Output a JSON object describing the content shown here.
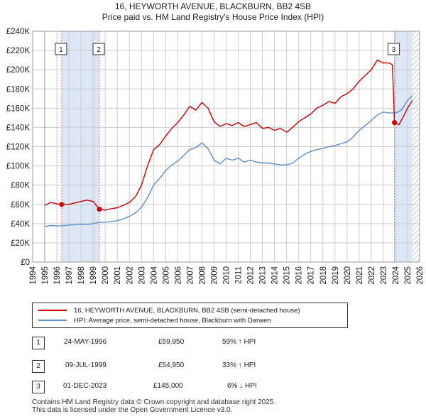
{
  "title_line1": "16, HEYWORTH AVENUE, BLACKBURN, BB2 4SB",
  "title_line2": "Price paid vs. HM Land Registry's House Price Index (HPI)",
  "colors": {
    "property": "#cc0000",
    "hpi": "#5b8fd0",
    "shade": "#dde6f5",
    "grid": "#cccccc",
    "marker_dash": "#dd6677"
  },
  "legend": {
    "property_label": "16, HEYWORTH AVENUE, BLACKBURN, BB2 4SB (semi-detached house)",
    "hpi_label": "HPI: Average price, semi-detached house, Blackburn with Darwen"
  },
  "transactions": [
    {
      "num": "1",
      "date": "24-MAY-1996",
      "price": "£59,950",
      "hpi": "59% ↑ HPI"
    },
    {
      "num": "2",
      "date": "09-JUL-1999",
      "price": "£54,950",
      "hpi": "33% ↑ HPI"
    },
    {
      "num": "3",
      "date": "01-DEC-2023",
      "price": "£145,000",
      "hpi": "6% ↓ HPI"
    }
  ],
  "footer_line1": "Contains HM Land Registry data © Crown copyright and database right 2025.",
  "footer_line2": "This data is licensed under the Open Government Licence v3.0.",
  "chart_data": {
    "type": "line",
    "title": "16, HEYWORTH AVENUE, BLACKBURN, BB2 4SB — Price paid vs. HM Land Registry's House Price Index (HPI)",
    "xlim": [
      1994,
      2026
    ],
    "ylim": [
      0,
      240000
    ],
    "x_ticks": [
      "1994",
      "1995",
      "1996",
      "1997",
      "1998",
      "1999",
      "2000",
      "2001",
      "2002",
      "2003",
      "2004",
      "2005",
      "2006",
      "2007",
      "2008",
      "2009",
      "2010",
      "2011",
      "2012",
      "2013",
      "2014",
      "2015",
      "2016",
      "2017",
      "2018",
      "2019",
      "2020",
      "2021",
      "2022",
      "2023",
      "2024",
      "2025",
      "2026"
    ],
    "y_ticks": [
      {
        "value": 0,
        "label": "£0"
      },
      {
        "value": 20000,
        "label": "£20K"
      },
      {
        "value": 40000,
        "label": "£40K"
      },
      {
        "value": 60000,
        "label": "£60K"
      },
      {
        "value": 80000,
        "label": "£80K"
      },
      {
        "value": 100000,
        "label": "£100K"
      },
      {
        "value": 120000,
        "label": "£120K"
      },
      {
        "value": 140000,
        "label": "£140K"
      },
      {
        "value": 160000,
        "label": "£160K"
      },
      {
        "value": 180000,
        "label": "£180K"
      },
      {
        "value": 200000,
        "label": "£200K"
      },
      {
        "value": 220000,
        "label": "£220K"
      },
      {
        "value": 240000,
        "label": "£240K"
      }
    ],
    "data_start": 1995,
    "data_end": 2025.4,
    "shaded_ranges": [
      [
        1996.4,
        1999.5
      ],
      [
        2023.9,
        2025.4
      ]
    ],
    "hatched_range": [
      2025.4,
      2026
    ],
    "sale_markers": [
      {
        "label": "1",
        "x": 1996.4,
        "y": 59950
      },
      {
        "label": "2",
        "x": 1999.52,
        "y": 54950
      },
      {
        "label": "3",
        "x": 2023.92,
        "y": 145000
      }
    ],
    "series": [
      {
        "name": "16, HEYWORTH AVENUE, BLACKBURN, BB2 4SB (semi-detached house)",
        "points": [
          [
            1995,
            59000
          ],
          [
            1995.5,
            62000
          ],
          [
            1996,
            60500
          ],
          [
            1996.4,
            59950
          ],
          [
            1997,
            60000
          ],
          [
            1997.5,
            61500
          ],
          [
            1998,
            63000
          ],
          [
            1998.5,
            64500
          ],
          [
            1999,
            63000
          ],
          [
            1999.52,
            54950
          ],
          [
            2000,
            54000
          ],
          [
            2000.5,
            55500
          ],
          [
            2001,
            56500
          ],
          [
            2001.5,
            59000
          ],
          [
            2002,
            62000
          ],
          [
            2002.5,
            68000
          ],
          [
            2003,
            80000
          ],
          [
            2003.5,
            100000
          ],
          [
            2004,
            117000
          ],
          [
            2004.5,
            122000
          ],
          [
            2005,
            131000
          ],
          [
            2005.5,
            139000
          ],
          [
            2006,
            145000
          ],
          [
            2006.5,
            153000
          ],
          [
            2007,
            162000
          ],
          [
            2007.5,
            158000
          ],
          [
            2008,
            166000
          ],
          [
            2008.5,
            160000
          ],
          [
            2009,
            146000
          ],
          [
            2009.5,
            141000
          ],
          [
            2010,
            144000
          ],
          [
            2010.5,
            142000
          ],
          [
            2011,
            145000
          ],
          [
            2011.5,
            141000
          ],
          [
            2012,
            143000
          ],
          [
            2012.5,
            145000
          ],
          [
            2013,
            139000
          ],
          [
            2013.5,
            140000
          ],
          [
            2014,
            137000
          ],
          [
            2014.5,
            139000
          ],
          [
            2015,
            135000
          ],
          [
            2015.5,
            140000
          ],
          [
            2016,
            146000
          ],
          [
            2016.5,
            150000
          ],
          [
            2017,
            154000
          ],
          [
            2017.5,
            160000
          ],
          [
            2018,
            163000
          ],
          [
            2018.5,
            167000
          ],
          [
            2019,
            165000
          ],
          [
            2019.5,
            172000
          ],
          [
            2020,
            175000
          ],
          [
            2020.5,
            180000
          ],
          [
            2021,
            188000
          ],
          [
            2021.5,
            194000
          ],
          [
            2022,
            200000
          ],
          [
            2022.5,
            210000
          ],
          [
            2023,
            207000
          ],
          [
            2023.5,
            207000
          ],
          [
            2023.75,
            205000
          ],
          [
            2023.92,
            145000
          ],
          [
            2024,
            144000
          ],
          [
            2024.3,
            143000
          ],
          [
            2024.6,
            150000
          ],
          [
            2025,
            160000
          ],
          [
            2025.4,
            168000
          ]
        ]
      },
      {
        "name": "HPI: Average price, semi-detached house, Blackburn with Darwen",
        "points": [
          [
            1995,
            37000
          ],
          [
            1995.5,
            38000
          ],
          [
            1996,
            37500
          ],
          [
            1996.4,
            37700
          ],
          [
            1997,
            38500
          ],
          [
            1997.5,
            38700
          ],
          [
            1998,
            39500
          ],
          [
            1998.5,
            39000
          ],
          [
            1999,
            40000
          ],
          [
            1999.52,
            41300
          ],
          [
            2000,
            41500
          ],
          [
            2000.5,
            42000
          ],
          [
            2001,
            43000
          ],
          [
            2001.5,
            45000
          ],
          [
            2002,
            47500
          ],
          [
            2002.5,
            51000
          ],
          [
            2003,
            57000
          ],
          [
            2003.5,
            67000
          ],
          [
            2004,
            80000
          ],
          [
            2004.5,
            87000
          ],
          [
            2005,
            95000
          ],
          [
            2005.5,
            101000
          ],
          [
            2006,
            105000
          ],
          [
            2006.5,
            111000
          ],
          [
            2007,
            117000
          ],
          [
            2007.5,
            119000
          ],
          [
            2008,
            124000
          ],
          [
            2008.5,
            118000
          ],
          [
            2009,
            106000
          ],
          [
            2009.5,
            102000
          ],
          [
            2010,
            108000
          ],
          [
            2010.5,
            106000
          ],
          [
            2011,
            108000
          ],
          [
            2011.5,
            104000
          ],
          [
            2012,
            106000
          ],
          [
            2012.5,
            104000
          ],
          [
            2013,
            103000
          ],
          [
            2013.5,
            103000
          ],
          [
            2014,
            102000
          ],
          [
            2014.5,
            101000
          ],
          [
            2015,
            101000
          ],
          [
            2015.5,
            103000
          ],
          [
            2016,
            108000
          ],
          [
            2016.5,
            112000
          ],
          [
            2017,
            115000
          ],
          [
            2017.5,
            117000
          ],
          [
            2018,
            118000
          ],
          [
            2018.5,
            120000
          ],
          [
            2019,
            121000
          ],
          [
            2019.5,
            123000
          ],
          [
            2020,
            125000
          ],
          [
            2020.5,
            130000
          ],
          [
            2021,
            137000
          ],
          [
            2021.5,
            142000
          ],
          [
            2022,
            147000
          ],
          [
            2022.5,
            153000
          ],
          [
            2023,
            156000
          ],
          [
            2023.5,
            155000
          ],
          [
            2023.92,
            155000
          ],
          [
            2024,
            155000
          ],
          [
            2024.5,
            158000
          ],
          [
            2025,
            168000
          ],
          [
            2025.4,
            173000
          ]
        ]
      }
    ]
  }
}
